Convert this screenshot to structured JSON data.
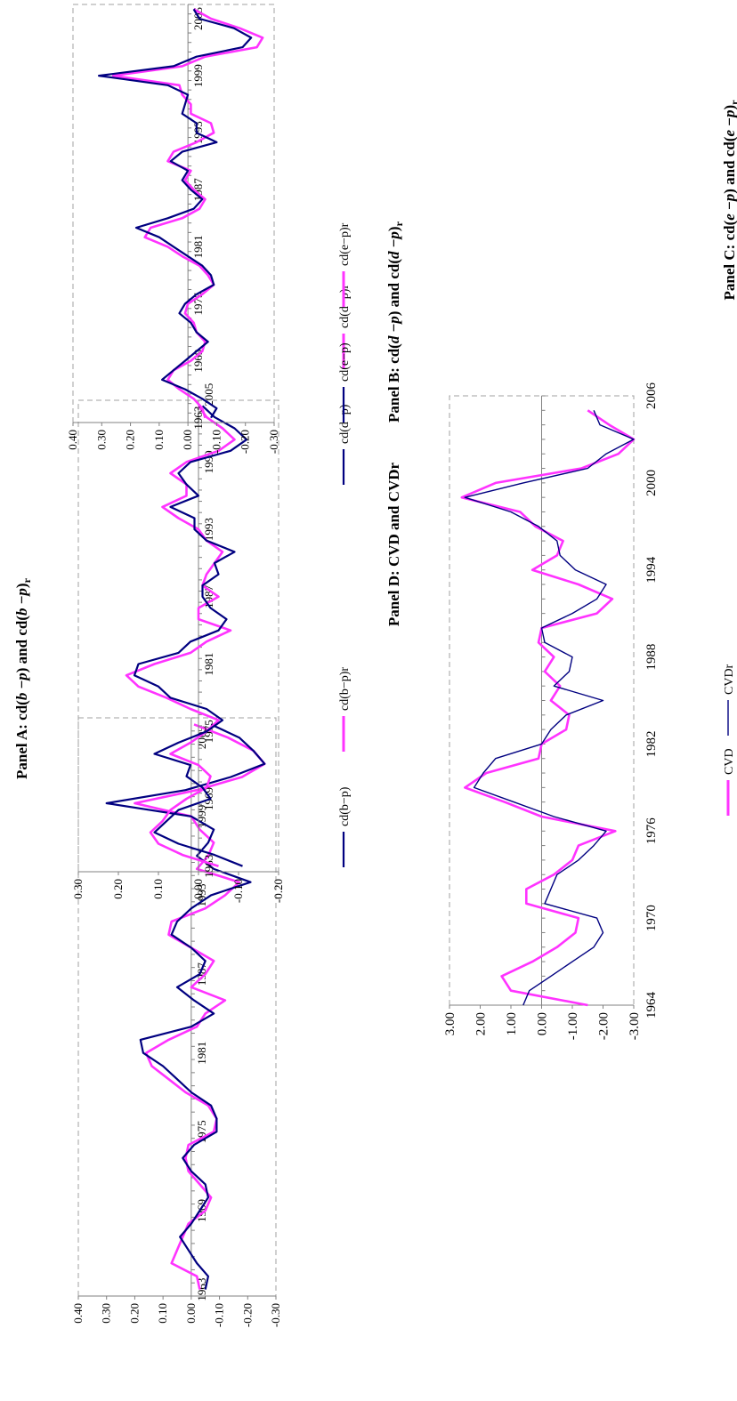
{
  "colors": {
    "series1": "#000080",
    "series2": "#ff33ff",
    "frame": "#a0a0a0",
    "axis": "#808080",
    "text": "#000000"
  },
  "chart_data": [
    {
      "id": "A",
      "type": "line",
      "title": "Panel A: cd(b−p) and cd(b−p)r",
      "title_parts": {
        "prefix": "Panel A: ",
        "cd1": "cd(",
        "v1": "b",
        "minus1": " −",
        "v1b": "p",
        "mid": ") and cd(",
        "v2": "b",
        "minus2": " −",
        "v2b": "p",
        "close": ")",
        "sub": "r"
      },
      "ylim": [
        -0.3,
        0.4
      ],
      "yticks": [
        "0.40",
        "0.30",
        "0.20",
        "0.10",
        "0.00",
        "-0.10",
        "-0.20",
        "-0.30"
      ],
      "year_labels": [
        {
          "text": "1963",
          "year": 1963
        },
        {
          "text": "1969",
          "year": 1969
        },
        {
          "text": "1975",
          "year": 1975
        },
        {
          "text": "1981",
          "year": 1981
        },
        {
          "text": "1987",
          "year": 1987
        },
        {
          "text": "1993",
          "year": 1993
        },
        {
          "text": "1999",
          "year": 1999
        },
        {
          "text": "2005",
          "year": 2005
        }
      ],
      "x_start": 1963,
      "x_end": 2006,
      "series": [
        {
          "name": "cd(b−p)",
          "values": [
            -0.05,
            -0.06,
            -0.02,
            0.01,
            0.04,
            0.0,
            -0.03,
            -0.06,
            -0.05,
            0.0,
            0.03,
            -0.01,
            -0.09,
            -0.09,
            -0.07,
            0.0,
            0.05,
            0.1,
            0.17,
            0.18,
            0.0,
            -0.08,
            -0.01,
            0.05,
            -0.03,
            -0.05,
            0.0,
            0.07,
            0.05,
            0.0,
            -0.07,
            -0.21,
            -0.08,
            -0.02,
            -0.06,
            -0.08,
            0.0,
            0.3,
            0.02,
            -0.14,
            -0.26,
            -0.22,
            -0.17,
            -0.07
          ]
        },
        {
          "name": "cd(b−p)r",
          "values": [
            -0.03,
            -0.02,
            0.07,
            0.05,
            0.03,
            0.01,
            -0.05,
            -0.07,
            -0.03,
            0.01,
            0.02,
            0.01,
            -0.08,
            -0.09,
            -0.06,
            0.02,
            0.08,
            0.14,
            0.16,
            0.08,
            -0.02,
            -0.05,
            -0.12,
            0.0,
            -0.05,
            -0.08,
            0.0,
            0.08,
            0.07,
            -0.05,
            -0.12,
            -0.17,
            -0.02,
            -0.06,
            -0.08,
            -0.03,
            0.0,
            0.2,
            -0.02,
            -0.18,
            -0.26,
            -0.22,
            -0.13,
            -0.01
          ]
        }
      ]
    },
    {
      "id": "B",
      "type": "line",
      "title": "Panel B: cd(d−p) and cd(d−p)r",
      "title_parts": {
        "prefix": "Panel B: ",
        "cd1": "cd(",
        "v1": "d",
        "minus1": " −",
        "v1b": "p",
        "mid": ") and cd(",
        "v2": "d",
        "minus2": " −",
        "v2b": "p",
        "close": ")",
        "sub": "r"
      },
      "ylim": [
        -0.2,
        0.3
      ],
      "yticks": [
        "0.30",
        "0.20",
        "0.10",
        "0.00",
        "-0.10",
        "-0.20"
      ],
      "year_labels": [
        {
          "text": "1963",
          "year": 1963
        },
        {
          "text": "1969",
          "year": 1969
        },
        {
          "text": "1975",
          "year": 1975
        },
        {
          "text": "1981",
          "year": 1981
        },
        {
          "text": "1987",
          "year": 1987
        },
        {
          "text": "1993",
          "year": 1993
        },
        {
          "text": "1999",
          "year": 1999
        },
        {
          "text": "2005",
          "year": 2005
        }
      ],
      "x_start": 1963,
      "x_end": 2006,
      "series": [
        {
          "name": "cd(d−p)",
          "values": [
            -0.11,
            -0.04,
            0.05,
            0.11,
            0.08,
            0.05,
            -0.03,
            -0.01,
            0.03,
            0.02,
            0.11,
            0.05,
            -0.02,
            -0.06,
            -0.02,
            0.07,
            0.1,
            0.16,
            0.15,
            0.05,
            0.02,
            -0.05,
            -0.07,
            -0.03,
            -0.01,
            -0.01,
            -0.05,
            -0.04,
            -0.09,
            -0.02,
            0.01,
            0.01,
            0.07,
            0.0,
            0.03,
            0.05,
            0.02,
            -0.08,
            -0.12,
            -0.09,
            -0.04,
            -0.01
          ]
        },
        {
          "name": "cd(d−p)r",
          "values": [
            -0.05,
            0.04,
            0.1,
            0.12,
            0.09,
            0.07,
            0.03,
            -0.02,
            -0.03,
            0.0,
            0.07,
            0.02,
            -0.02,
            -0.05,
            0.02,
            0.08,
            0.15,
            0.18,
            0.11,
            0.02,
            -0.02,
            -0.08,
            0.0,
            0.0,
            -0.05,
            -0.01,
            -0.02,
            -0.04,
            -0.06,
            -0.02,
            0.0,
            0.05,
            0.09,
            0.03,
            0.03,
            0.07,
            0.03,
            -0.05,
            -0.09,
            -0.06,
            -0.02,
            0.0
          ]
        }
      ]
    },
    {
      "id": "C",
      "type": "line",
      "title": "Panel C: cd(e−p) and cd(e−p)r",
      "title_parts": {
        "prefix": "Panel C: ",
        "cd1": "cd(",
        "v1": "e",
        "minus1": " −",
        "v1b": "p",
        "mid": ") and cd(",
        "v2": "e",
        "minus2": " −",
        "v2b": "p",
        "close": ")",
        "sub": "r"
      },
      "ylim": [
        -0.3,
        0.4
      ],
      "yticks": [
        "0.40",
        "0.30",
        "0.20",
        "0.10",
        "0.00",
        "-0.10",
        "-0.20",
        "-0.30"
      ],
      "year_labels": [
        {
          "text": "1963",
          "year": 1963
        },
        {
          "text": "1969",
          "year": 1969
        },
        {
          "text": "1975",
          "year": 1975
        },
        {
          "text": "1981",
          "year": 1981
        },
        {
          "text": "1987",
          "year": 1987
        },
        {
          "text": "1993",
          "year": 1993
        },
        {
          "text": "1999",
          "year": 1999
        },
        {
          "text": "2005",
          "year": 2005
        }
      ],
      "x_start": 1963,
      "x_end": 2006,
      "series": [
        {
          "name": "cd(e−p)",
          "values": [
            -0.08,
            -0.1,
            -0.05,
            0.01,
            0.09,
            0.05,
            0.01,
            -0.03,
            -0.07,
            -0.03,
            -0.01,
            0.03,
            0.01,
            -0.03,
            -0.09,
            -0.08,
            -0.05,
            0.0,
            0.05,
            0.1,
            0.18,
            0.07,
            -0.02,
            -0.05,
            -0.01,
            0.02,
            0.0,
            0.06,
            0.02,
            -0.1,
            -0.03,
            -0.03,
            0.02,
            0.01,
            0.0,
            0.07,
            0.31,
            0.05,
            -0.03,
            -0.19,
            -0.22,
            -0.16,
            -0.04,
            -0.02
          ]
        },
        {
          "name": "cd(e−p)r",
          "values": [
            -0.06,
            -0.05,
            -0.02,
            0.03,
            0.07,
            0.05,
            -0.01,
            -0.05,
            -0.06,
            -0.03,
            -0.02,
            0.01,
            0.0,
            -0.05,
            -0.09,
            -0.07,
            -0.04,
            0.02,
            0.07,
            0.15,
            0.13,
            0.02,
            -0.04,
            -0.06,
            -0.02,
            0.01,
            -0.01,
            0.07,
            0.05,
            -0.03,
            -0.09,
            -0.08,
            -0.01,
            -0.01,
            0.02,
            0.03,
            0.26,
            0.02,
            -0.06,
            -0.24,
            -0.26,
            -0.18,
            -0.08,
            -0.02
          ]
        }
      ]
    },
    {
      "id": "D",
      "type": "line",
      "title": "Panel D: CVD and CVDr",
      "ylim": [
        -3.0,
        3.0
      ],
      "yticks": [
        "3.00",
        "2.00",
        "1.00",
        "0.00",
        "-1.00",
        "-2.00",
        "-3.00"
      ],
      "xticks": [
        "1964",
        "1970",
        "1976",
        "1982",
        "1988",
        "1994",
        "2000",
        "2006"
      ],
      "x": [
        1964,
        1965,
        1966,
        1967,
        1968,
        1969,
        1970,
        1971,
        1972,
        1973,
        1974,
        1975,
        1976,
        1977,
        1978,
        1979,
        1980,
        1981,
        1982,
        1983,
        1984,
        1985,
        1986,
        1987,
        1988,
        1989,
        1990,
        1991,
        1992,
        1993,
        1994,
        1995,
        1996,
        1997,
        1998,
        1999,
        2000,
        2001,
        2002,
        2003,
        2004,
        2005
      ],
      "series": [
        {
          "name": "CVD",
          "values": [
            -1.5,
            1.0,
            1.3,
            0.3,
            -0.5,
            -1.1,
            -1.2,
            0.5,
            0.5,
            -0.4,
            -1.0,
            -1.2,
            -2.4,
            0.0,
            1.2,
            2.5,
            1.8,
            0.1,
            0.0,
            -0.8,
            -0.9,
            -0.3,
            -0.6,
            -0.1,
            -0.4,
            0.1,
            0.0,
            -1.8,
            -2.3,
            -1.2,
            0.3,
            -0.5,
            -0.7,
            0.2,
            0.7,
            2.6,
            1.5,
            -1.3,
            -2.5,
            -3.0,
            -2.2,
            -1.5
          ]
        },
        {
          "name": "CVDr",
          "values": [
            0.6,
            0.4,
            -0.3,
            -1.0,
            -1.7,
            -2.0,
            -1.8,
            -0.1,
            -0.3,
            -0.5,
            -1.2,
            -1.7,
            -2.1,
            -0.4,
            0.9,
            2.2,
            1.9,
            1.5,
            0.0,
            -0.3,
            -0.8,
            -2.0,
            -0.4,
            -0.9,
            -1.0,
            -0.1,
            0.0,
            -1.0,
            -1.8,
            -2.1,
            -1.1,
            -0.6,
            -0.5,
            0.1,
            1.0,
            2.5,
            0.6,
            -1.5,
            -2.1,
            -3.0,
            -1.9,
            -1.7
          ]
        }
      ]
    }
  ]
}
